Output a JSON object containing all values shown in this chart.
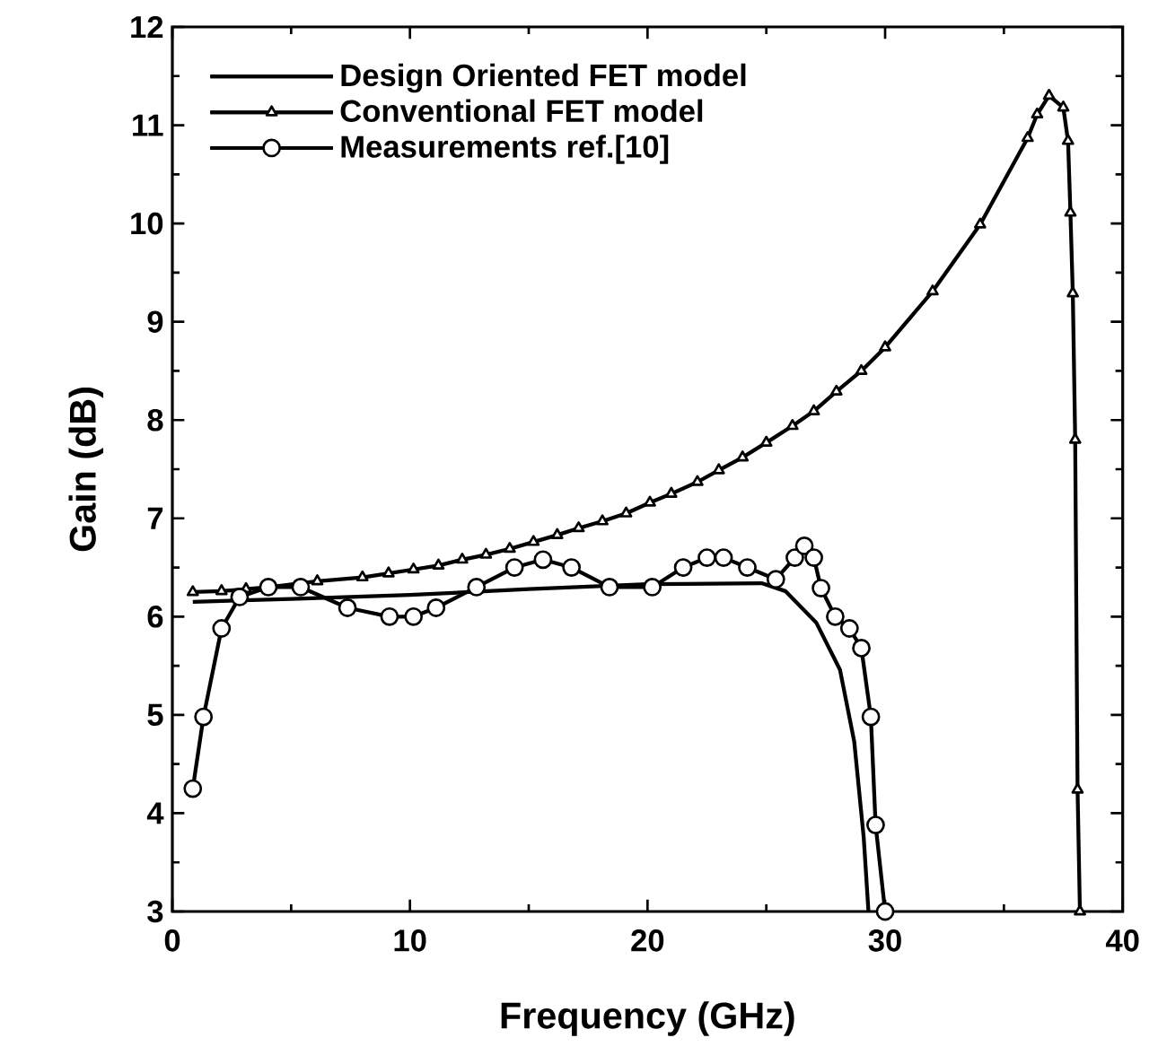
{
  "chart_data": {
    "type": "line",
    "xlabel": "Frequency (GHz)",
    "ylabel": "Gain (dB)",
    "xlim": [
      0,
      40
    ],
    "ylim": [
      3,
      12
    ],
    "xticks": [
      0,
      10,
      20,
      30,
      40
    ],
    "yticks": [
      3,
      4,
      5,
      6,
      7,
      8,
      9,
      10,
      11,
      12
    ],
    "legend": "top left",
    "line_style": "solid",
    "series": [
      {
        "name": "Design Oriented FET model",
        "color": "#000000",
        "marker": "none",
        "x": [
          0.86,
          5,
          10,
          15,
          20,
          24.8,
          25.8,
          27.1,
          28.1,
          28.7,
          29.1,
          29.3
        ],
        "values": [
          6.15,
          6.18,
          6.22,
          6.28,
          6.33,
          6.34,
          6.26,
          5.94,
          5.46,
          4.73,
          3.75,
          3.0
        ]
      },
      {
        "name": "Conventional FET model",
        "color": "#000000",
        "marker": "triangle",
        "x": [
          0.86,
          2.07,
          3.1,
          4.1,
          5.1,
          6.1,
          8.0,
          9.1,
          10.15,
          11.2,
          12.2,
          13.2,
          14.2,
          15.2,
          16.2,
          17.1,
          18.1,
          19.1,
          20.1,
          21.0,
          22.1,
          23.0,
          24.0,
          25.0,
          26.1,
          27.0,
          27.95,
          29.0,
          30.0,
          32.0,
          34.0,
          36.0,
          36.4,
          36.9,
          37.5,
          37.7,
          37.8,
          37.9,
          38.0,
          38.1,
          38.2
        ],
        "values": [
          6.25,
          6.26,
          6.28,
          6.3,
          null,
          6.36,
          6.4,
          6.44,
          6.48,
          6.52,
          6.58,
          6.63,
          6.69,
          6.76,
          6.83,
          6.9,
          6.97,
          7.05,
          7.16,
          7.25,
          7.37,
          7.49,
          7.62,
          7.77,
          7.94,
          8.09,
          8.29,
          8.5,
          8.74,
          9.31,
          9.99,
          10.87,
          11.11,
          11.3,
          11.18,
          10.84,
          10.11,
          9.29,
          7.8,
          4.24,
          3.0
        ]
      },
      {
        "name": "Measurements ref.[10]",
        "color": "#000000",
        "marker": "circle",
        "x": [
          0.86,
          1.31,
          2.07,
          2.83,
          4.04,
          5.4,
          7.37,
          9.14,
          10.15,
          11.1,
          12.8,
          14.4,
          15.6,
          16.8,
          18.4,
          20.2,
          21.5,
          22.5,
          23.2,
          24.2,
          25.4,
          26.2,
          26.6,
          27.0,
          27.3,
          27.9,
          28.5,
          29.0,
          29.4,
          29.6,
          30.0
        ],
        "values": [
          4.25,
          4.98,
          5.88,
          6.2,
          6.3,
          6.3,
          6.09,
          6.0,
          6.0,
          6.09,
          6.3,
          6.5,
          6.58,
          6.5,
          6.3,
          6.3,
          6.5,
          6.6,
          6.6,
          6.5,
          6.38,
          6.6,
          6.72,
          6.6,
          6.29,
          6.0,
          5.88,
          5.68,
          4.98,
          3.88,
          3.0
        ]
      }
    ]
  }
}
